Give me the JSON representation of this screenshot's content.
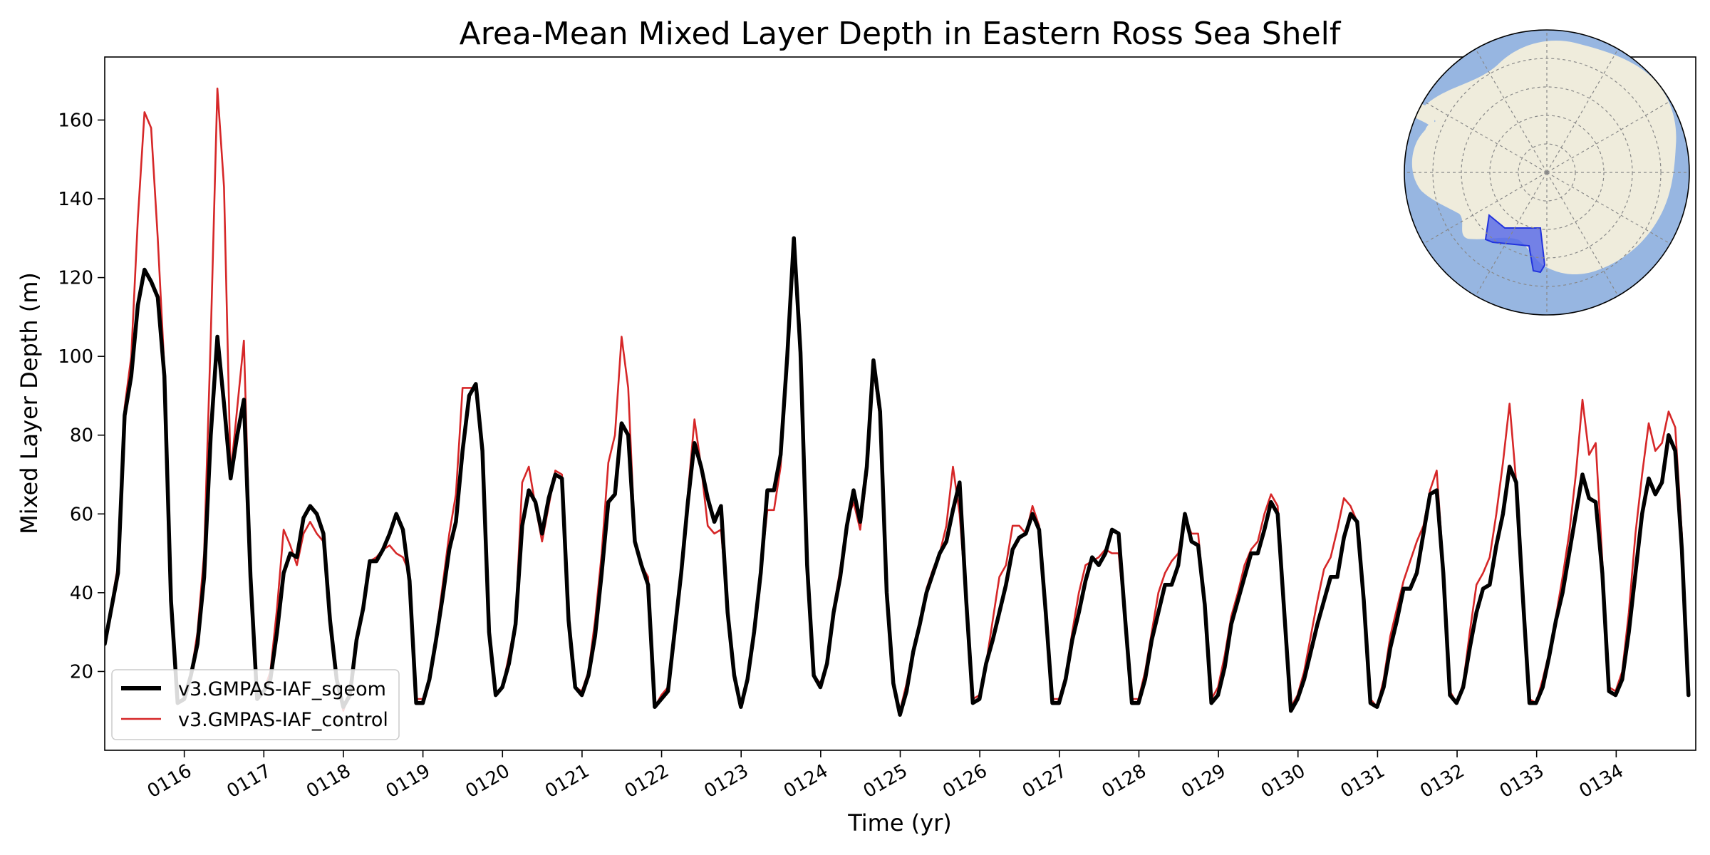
{
  "chart_data": {
    "type": "line",
    "title": "Area-Mean Mixed Layer Depth in Eastern Ross Sea Shelf",
    "xlabel": "Time (yr)",
    "ylabel": "Mixed Layer Depth (m)",
    "xlim": [
      115.0,
      135.0
    ],
    "ylim": [
      0,
      176
    ],
    "x_ticks": [
      116,
      117,
      118,
      119,
      120,
      121,
      122,
      123,
      124,
      125,
      126,
      127,
      128,
      129,
      130,
      131,
      132,
      133,
      134
    ],
    "x_tick_labels": [
      "0116",
      "0117",
      "0118",
      "0119",
      "0120",
      "0121",
      "0122",
      "0123",
      "0124",
      "0125",
      "0126",
      "0127",
      "0128",
      "0129",
      "0130",
      "0131",
      "0132",
      "0133",
      "0134"
    ],
    "y_ticks": [
      20,
      40,
      60,
      80,
      100,
      120,
      140,
      160
    ],
    "y_tick_labels": [
      "20",
      "40",
      "60",
      "80",
      "100",
      "120",
      "140",
      "160"
    ],
    "grid": false,
    "legend_position": "lower-left",
    "inset_map": "south-polar-map-of-antarctica-with-eastern-ross-sea-shelf-highlighted",
    "series": [
      {
        "name": "v3.GMPAS-IAF_sgeom",
        "color": "#000000",
        "x_start": 115.0,
        "step": 0.0833,
        "values": [
          27,
          36,
          45,
          85,
          95,
          113,
          122,
          119,
          115,
          95,
          38,
          12,
          13,
          19,
          27,
          44,
          80,
          105,
          88,
          69,
          80,
          89,
          44,
          13,
          15,
          18,
          30,
          45,
          50,
          49,
          59,
          62,
          60,
          55,
          33,
          18,
          11,
          14,
          28,
          36,
          48,
          48,
          51,
          55,
          60,
          56,
          43,
          12,
          12,
          18,
          28,
          39,
          51,
          58,
          76,
          90,
          93,
          76,
          30,
          14,
          16,
          22,
          32,
          57,
          66,
          63,
          55,
          64,
          70,
          69,
          33,
          16,
          14,
          19,
          29,
          45,
          63,
          65,
          83,
          80,
          53,
          47,
          42,
          11,
          13,
          15,
          30,
          45,
          63,
          78,
          72,
          64,
          58,
          62,
          35,
          19,
          11,
          18,
          30,
          45,
          66,
          66,
          75,
          100,
          130,
          101,
          47,
          19,
          16,
          22,
          35,
          44,
          57,
          66,
          58,
          72,
          99,
          86,
          40,
          17,
          9,
          15,
          25,
          32,
          40,
          45,
          50,
          53,
          61,
          68,
          38,
          12,
          13,
          22,
          28,
          35,
          42,
          51,
          54,
          55,
          60,
          56,
          35,
          12,
          12,
          18,
          28,
          35,
          43,
          49,
          47,
          50,
          56,
          55,
          33,
          12,
          12,
          18,
          28,
          35,
          42,
          42,
          47,
          60,
          53,
          52,
          37,
          12,
          14,
          21,
          32,
          38,
          44,
          50,
          50,
          56,
          63,
          60,
          35,
          10,
          13,
          18,
          25,
          32,
          38,
          44,
          44,
          54,
          60,
          58,
          38,
          12,
          11,
          16,
          26,
          33,
          41,
          41,
          45,
          55,
          65,
          66,
          45,
          14,
          12,
          16,
          26,
          35,
          41,
          42,
          52,
          60,
          72,
          68,
          39,
          12,
          12,
          16,
          24,
          33,
          40,
          50,
          60,
          70,
          64,
          63,
          45,
          15,
          14,
          18,
          30,
          45,
          60,
          69,
          65,
          68,
          80,
          76,
          51,
          14
        ]
      },
      {
        "name": "v3.GMPAS-IAF_control",
        "color": "#d62728",
        "x_start": 115.0,
        "step": 0.0833,
        "values": [
          28,
          37,
          47,
          87,
          100,
          135,
          162,
          158,
          130,
          97,
          40,
          12,
          13,
          19,
          30,
          50,
          105,
          168,
          143,
          70,
          87,
          104,
          45,
          13,
          15,
          20,
          36,
          56,
          52,
          47,
          55,
          58,
          55,
          53,
          33,
          17,
          10,
          15,
          29,
          37,
          48,
          49,
          51,
          52,
          50,
          49,
          45,
          13,
          13,
          18,
          29,
          42,
          55,
          65,
          92,
          92,
          92,
          75,
          30,
          14,
          16,
          24,
          33,
          68,
          72,
          62,
          53,
          62,
          71,
          70,
          33,
          16,
          15,
          20,
          33,
          50,
          73,
          80,
          105,
          92,
          54,
          47,
          44,
          11,
          14,
          16,
          31,
          47,
          65,
          84,
          72,
          57,
          55,
          56,
          36,
          19,
          11,
          19,
          30,
          45,
          61,
          61,
          72,
          98,
          127,
          100,
          47,
          19,
          17,
          22,
          36,
          46,
          58,
          63,
          56,
          70,
          97,
          84,
          42,
          17,
          10,
          17,
          26,
          33,
          41,
          46,
          50,
          57,
          72,
          60,
          38,
          13,
          14,
          22,
          33,
          44,
          47,
          57,
          57,
          55,
          62,
          57,
          35,
          13,
          13,
          19,
          30,
          40,
          47,
          48,
          49,
          51,
          50,
          50,
          33,
          13,
          13,
          20,
          30,
          40,
          45,
          48,
          50,
          59,
          55,
          55,
          37,
          13,
          16,
          24,
          34,
          40,
          47,
          51,
          53,
          60,
          65,
          62,
          36,
          11,
          14,
          20,
          29,
          38,
          46,
          49,
          56,
          64,
          62,
          58,
          38,
          13,
          11,
          18,
          29,
          36,
          43,
          48,
          53,
          57,
          66,
          71,
          47,
          15,
          12,
          17,
          30,
          42,
          45,
          49,
          60,
          73,
          88,
          68,
          40,
          13,
          12,
          18,
          25,
          34,
          44,
          55,
          70,
          89,
          75,
          78,
          48,
          16,
          15,
          20,
          35,
          55,
          70,
          83,
          76,
          78,
          86,
          82,
          55,
          15
        ]
      }
    ]
  }
}
